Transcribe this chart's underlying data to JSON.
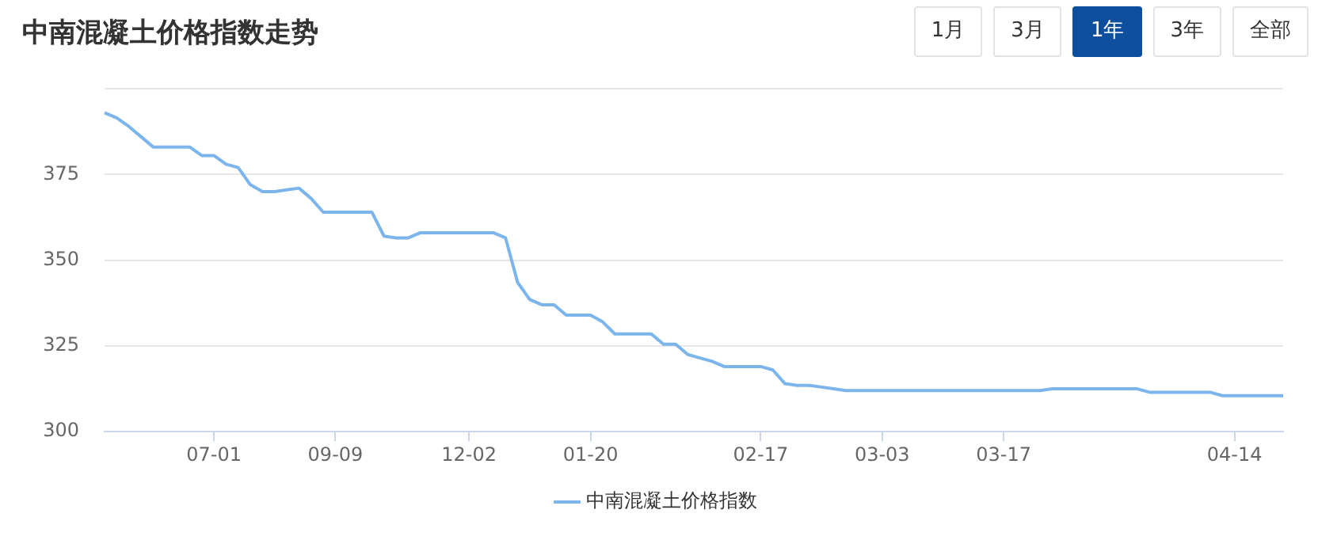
{
  "chart_data": {
    "type": "line",
    "title": "中南混凝土价格指数走势",
    "annotations": [
      "1月",
      "3月",
      "1年",
      "3年",
      "全部"
    ],
    "categories": [
      null,
      null,
      null,
      null,
      null,
      null,
      null,
      null,
      null,
      "07-01",
      null,
      null,
      null,
      null,
      null,
      null,
      null,
      null,
      null,
      "09-09",
      null,
      null,
      null,
      null,
      null,
      null,
      null,
      null,
      null,
      null,
      "12-02",
      null,
      null,
      null,
      null,
      null,
      null,
      null,
      null,
      null,
      "01-20",
      null,
      null,
      null,
      null,
      null,
      null,
      null,
      null,
      null,
      null,
      null,
      null,
      null,
      "02-17",
      null,
      null,
      null,
      null,
      null,
      null,
      null,
      null,
      null,
      "03-03",
      null,
      null,
      null,
      null,
      null,
      null,
      null,
      null,
      null,
      "03-17",
      null,
      null,
      null,
      null,
      null,
      null,
      null,
      null,
      null,
      null,
      null,
      null,
      null,
      null,
      null,
      null,
      null,
      null,
      "04-14",
      null,
      null,
      null,
      null
    ],
    "series": [
      {
        "name": "中南混凝土价格指数",
        "color": "#7cb5ec",
        "values": [
          393,
          391.5,
          389,
          386,
          383,
          383,
          383,
          383,
          380.5,
          380.5,
          378,
          377,
          372,
          370,
          370,
          370.5,
          371,
          368,
          364,
          364,
          364,
          364,
          364,
          357,
          356.5,
          356.5,
          358,
          358,
          358,
          358,
          358,
          358,
          358,
          356.5,
          343.5,
          338.5,
          337,
          337,
          334,
          334,
          334,
          332,
          328.5,
          328.5,
          328.5,
          328.5,
          325.5,
          325.5,
          322.5,
          321.5,
          320.5,
          319,
          319,
          319,
          319,
          318,
          314,
          313.5,
          313.5,
          313,
          312.5,
          312,
          312,
          312,
          312,
          312,
          312,
          312,
          312,
          312,
          312,
          312,
          312,
          312,
          312,
          312,
          312,
          312,
          312.5,
          312.5,
          312.5,
          312.5,
          312.5,
          312.5,
          312.5,
          312.5,
          311.5,
          311.5,
          311.5,
          311.5,
          311.5,
          311.5,
          310.5,
          310.5,
          310.5,
          310.5,
          310.5,
          310.5
        ]
      }
    ],
    "ylim": [
      300,
      400
    ],
    "yticks": [
      300,
      325,
      350,
      375,
      {
        "value": 400,
        "label": null
      }
    ],
    "grid": "y",
    "legend": "bottom",
    "marker": "none",
    "line_style": "solid"
  }
}
